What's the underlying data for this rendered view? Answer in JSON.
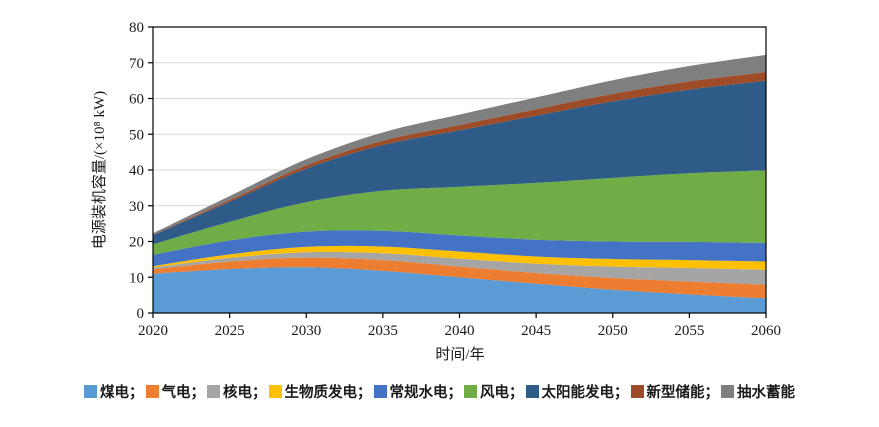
{
  "figure": {
    "background": "#ffffff",
    "plot_border_color": "#000000",
    "gridline_color": "#d9d9d9"
  },
  "chart_data": {
    "type": "area",
    "stacked": true,
    "title": "",
    "xlabel": "时间/年",
    "ylabel": "电源装机容量/(×10⁸ kW)",
    "x": [
      2020,
      2025,
      2030,
      2035,
      2040,
      2045,
      2050,
      2055,
      2060
    ],
    "x_tick_labels": [
      "2020",
      "2025",
      "2030",
      "2035",
      "2040",
      "2045",
      "2050",
      "2055",
      "2060"
    ],
    "ylim": [
      0,
      80
    ],
    "y_ticks": [
      0,
      10,
      20,
      30,
      40,
      50,
      60,
      70,
      80
    ],
    "grid": "horizontal",
    "legend_position": "bottom",
    "legend_separator": "；",
    "series": [
      {
        "key": "coal",
        "name": "煤电",
        "color": "#5B9BD5",
        "values": [
          11.0,
          12.3,
          12.8,
          11.8,
          10.0,
          8.2,
          6.5,
          5.2,
          4.1
        ]
      },
      {
        "key": "gas",
        "name": "气电",
        "color": "#ED7D31",
        "values": [
          1.2,
          2.1,
          2.7,
          3.0,
          3.0,
          3.0,
          3.3,
          3.6,
          3.8
        ]
      },
      {
        "key": "nuclear",
        "name": "核电",
        "color": "#A5A5A5",
        "values": [
          0.5,
          1.0,
          1.5,
          1.9,
          2.2,
          2.6,
          3.2,
          3.8,
          4.2
        ]
      },
      {
        "key": "biomass",
        "name": "生物质发电",
        "color": "#FFC000",
        "values": [
          0.4,
          1.0,
          1.5,
          1.9,
          2.0,
          2.0,
          2.1,
          2.2,
          2.3
        ]
      },
      {
        "key": "hydro",
        "name": "常规水电",
        "color": "#4472C4",
        "values": [
          3.2,
          3.9,
          4.3,
          4.4,
          4.5,
          4.7,
          4.9,
          5.1,
          5.2
        ]
      },
      {
        "key": "wind",
        "name": "风电",
        "color": "#70AD47",
        "values": [
          2.9,
          5.2,
          8.2,
          11.2,
          13.6,
          15.9,
          17.8,
          19.2,
          20.3
        ]
      },
      {
        "key": "solar",
        "name": "太阳能发电",
        "color": "#2F5B88",
        "values": [
          2.6,
          5.6,
          9.4,
          12.8,
          15.8,
          18.8,
          21.4,
          23.4,
          25.1
        ]
      },
      {
        "key": "storage",
        "name": "新型储能",
        "color": "#9E4B28",
        "values": [
          0.1,
          0.5,
          0.9,
          1.2,
          1.5,
          1.8,
          2.1,
          2.3,
          2.4
        ]
      },
      {
        "key": "pumped",
        "name": "抽水蓄能",
        "color": "#7F7F7F",
        "values": [
          0.4,
          1.1,
          1.7,
          2.3,
          2.9,
          3.3,
          3.8,
          4.3,
          4.8
        ]
      }
    ]
  }
}
